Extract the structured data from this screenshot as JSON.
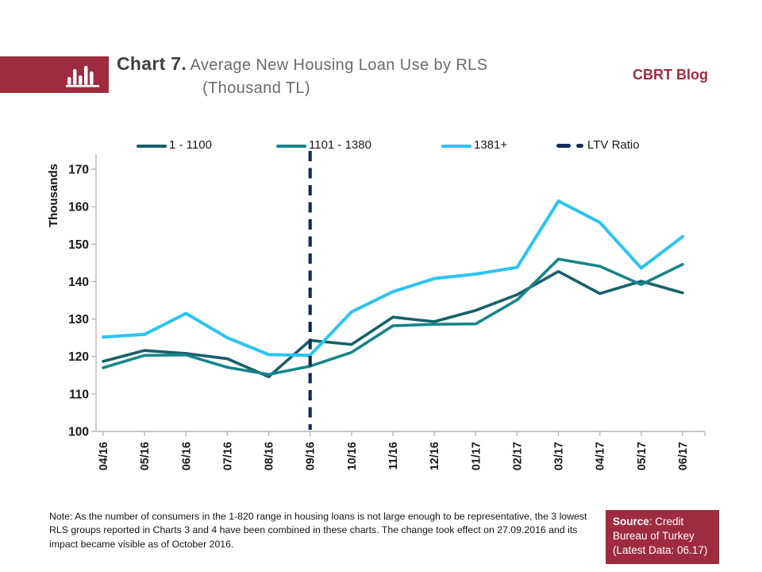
{
  "header": {
    "chart_label": "Chart 7.",
    "title": "Average New Housing Loan Use by  RLS",
    "subtitle": "(Thousand TL)",
    "blog": "CBRT Blog"
  },
  "colors": {
    "accent_red": "#9E2C3E",
    "series1": "#17606A",
    "series2": "#16858C",
    "series3": "#2BC4F3",
    "ltv_navy": "#102D5C",
    "axis_gray": "#b7b7b7"
  },
  "chart_data": {
    "type": "line",
    "ylabel": "Thousands",
    "ylim": [
      100,
      174
    ],
    "yticks": [
      100,
      110,
      120,
      130,
      140,
      150,
      160,
      170
    ],
    "grid": false,
    "legend_position": "top",
    "categories": [
      "04/16",
      "05/16",
      "06/16",
      "07/16",
      "08/16",
      "09/16",
      "10/16",
      "11/16",
      "12/16",
      "01/17",
      "02/17",
      "03/17",
      "04/17",
      "05/17",
      "06/17"
    ],
    "series": [
      {
        "name": "1 - 1100",
        "color": "#17606A",
        "values": [
          118.7,
          121.6,
          120.8,
          119.4,
          114.6,
          124.3,
          123.2,
          130.5,
          129.3,
          132.3,
          136.5,
          142.7,
          136.8,
          140.1,
          137.0
        ]
      },
      {
        "name": "1101 - 1380",
        "color": "#16858C",
        "values": [
          117.0,
          120.3,
          120.4,
          117.1,
          115.2,
          117.4,
          121.1,
          128.2,
          128.6,
          128.7,
          135.1,
          146.0,
          144.1,
          139.2,
          144.6
        ]
      },
      {
        "name": "1381+",
        "color": "#2BC4F3",
        "values": [
          125.2,
          125.9,
          131.5,
          125.0,
          120.5,
          120.3,
          131.9,
          137.3,
          140.8,
          142.0,
          143.8,
          161.5,
          155.8,
          143.6,
          152.0
        ]
      }
    ],
    "vline": {
      "name": "LTV Ratio",
      "x": "09/16",
      "color": "#102D5C",
      "style": "dashed"
    }
  },
  "note": "Note:  As the number of consumers in the 1-820 range in housing loans is not large enough to be representative, the  3 lowest RLS groups reported  in Charts 3 and 4 have been combined in these charts. The change took effect on 27.09.2016 and its impact became visible as of October 2016.",
  "source": {
    "label": "Source",
    "rest": ": Credit Bureau of Turkey (Latest Data: 06.17)"
  }
}
